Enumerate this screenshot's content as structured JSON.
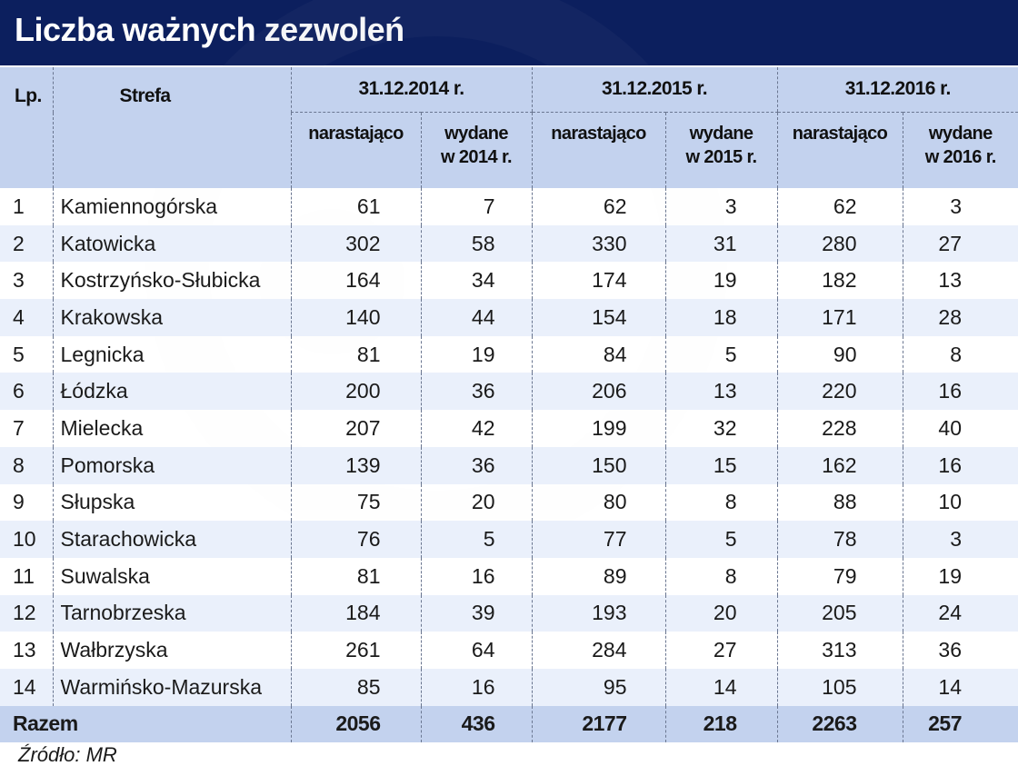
{
  "title": "Liczba ważnych zezwoleń",
  "source": "Źródło: MR",
  "colors": {
    "title_bar": "#0c1f5e",
    "header_bg": "#c3d2ee",
    "stripe": "#eaf0fb"
  },
  "chart_data": {
    "type": "table",
    "title": "Liczba ważnych zezwoleń",
    "header": {
      "lp": "Lp.",
      "zone": "Strefa",
      "total": "Razem",
      "periods": [
        {
          "label": "31.12.2014 r.",
          "cumulative": "narastająco",
          "issued_l1": "wydane",
          "issued_l2": "w 2014 r."
        },
        {
          "label": "31.12.2015 r.",
          "cumulative": "narastająco",
          "issued_l1": "wydane",
          "issued_l2": "w 2015 r."
        },
        {
          "label": "31.12.2016 r.",
          "cumulative": "narastająco",
          "issued_l1": "wydane",
          "issued_l2": "w 2016 r."
        }
      ]
    },
    "rows": [
      {
        "lp": "1",
        "name": "Kamiennogórska",
        "values": [
          61,
          7,
          62,
          3,
          62,
          3
        ]
      },
      {
        "lp": "2",
        "name": "Katowicka",
        "values": [
          302,
          58,
          330,
          31,
          280,
          27
        ]
      },
      {
        "lp": "3",
        "name": "Kostrzyńsko-Słubicka",
        "values": [
          164,
          34,
          174,
          19,
          182,
          13
        ]
      },
      {
        "lp": "4",
        "name": "Krakowska",
        "values": [
          140,
          44,
          154,
          18,
          171,
          28
        ]
      },
      {
        "lp": "5",
        "name": "Legnicka",
        "values": [
          81,
          19,
          84,
          5,
          90,
          8
        ]
      },
      {
        "lp": "6",
        "name": "Łódzka",
        "values": [
          200,
          36,
          206,
          13,
          220,
          16
        ]
      },
      {
        "lp": "7",
        "name": "Mielecka",
        "values": [
          207,
          42,
          199,
          32,
          228,
          40
        ]
      },
      {
        "lp": "8",
        "name": "Pomorska",
        "values": [
          139,
          36,
          150,
          15,
          162,
          16
        ]
      },
      {
        "lp": "9",
        "name": "Słupska",
        "values": [
          75,
          20,
          80,
          8,
          88,
          10
        ]
      },
      {
        "lp": "10",
        "name": "Starachowicka",
        "values": [
          76,
          5,
          77,
          5,
          78,
          3
        ]
      },
      {
        "lp": "11",
        "name": "Suwalska",
        "values": [
          81,
          16,
          89,
          8,
          79,
          19
        ]
      },
      {
        "lp": "12",
        "name": "Tarnobrzeska",
        "values": [
          184,
          39,
          193,
          20,
          205,
          24
        ]
      },
      {
        "lp": "13",
        "name": "Wałbrzyska",
        "values": [
          261,
          64,
          284,
          27,
          313,
          36
        ]
      },
      {
        "lp": "14",
        "name": "Warmińsko-Mazurska",
        "values": [
          85,
          16,
          95,
          14,
          105,
          14
        ]
      }
    ],
    "totals": [
      2056,
      436,
      2177,
      218,
      2263,
      257
    ]
  }
}
